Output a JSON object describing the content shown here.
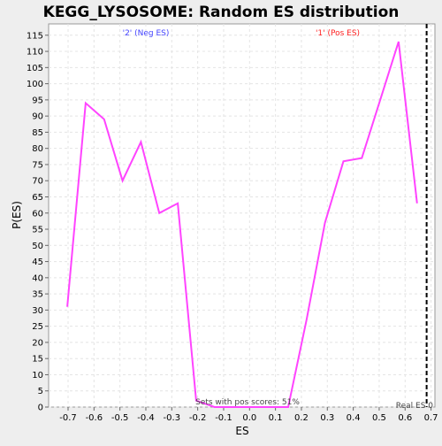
{
  "chart_data": {
    "type": "line",
    "title": "KEGG_LYSOSOME: Random ES distribution",
    "xlabel": "ES",
    "ylabel": "P(ES)",
    "xlim": [
      -0.775,
      0.715
    ],
    "ylim": [
      0,
      118.5
    ],
    "x_ticks": [
      -0.7,
      -0.6,
      -0.5,
      -0.4,
      -0.3,
      -0.2,
      -0.1,
      0.0,
      0.1,
      0.2,
      0.3,
      0.4,
      0.5,
      0.6,
      0.7
    ],
    "x_tick_labels": [
      "-0.7",
      "-0.6",
      "-0.5",
      "-0.4",
      "-0.3",
      "-0.2",
      "-0.1",
      "0.0",
      "0.1",
      "0.2",
      "0.3",
      "0.4",
      "0.5",
      "0.6",
      "0.7"
    ],
    "y_ticks": [
      0,
      5,
      10,
      15,
      20,
      25,
      30,
      35,
      40,
      45,
      50,
      55,
      60,
      65,
      70,
      75,
      80,
      85,
      90,
      95,
      100,
      105,
      110,
      115
    ],
    "y_tick_labels": [
      "0",
      "5",
      "10",
      "15",
      "20",
      "25",
      "30",
      "35",
      "40",
      "45",
      "50",
      "55",
      "60",
      "65",
      "70",
      "75",
      "80",
      "85",
      "90",
      "95",
      "100",
      "105",
      "110",
      "115"
    ],
    "grid": true,
    "series": [
      {
        "color": "#ff44ff",
        "x": [
          -0.703,
          -0.632,
          -0.561,
          -0.49,
          -0.419,
          -0.348,
          -0.277,
          -0.206,
          -0.135,
          -0.064,
          0.007,
          0.078,
          0.149,
          0.22,
          0.291,
          0.362,
          0.433,
          0.504,
          0.575,
          0.646
        ],
        "y": [
          31,
          94,
          89,
          70,
          82,
          60,
          63,
          2,
          0,
          0,
          0,
          0,
          0,
          27,
          57,
          76,
          77,
          95,
          113,
          63
        ]
      }
    ],
    "annotations": {
      "neg_label": "'2' (Neg ES)",
      "pos_label": "'1' (Pos ES)",
      "pos_scores": "Sets with pos scores: 51%",
      "real_es_label": "Real ES 0",
      "real_es_value": 0.683
    },
    "colors": {
      "neg": "#4444ff",
      "pos": "#ff2222",
      "line": "#ff44ff",
      "background": "#eeeeee",
      "plot_area": "#ffffff"
    }
  }
}
